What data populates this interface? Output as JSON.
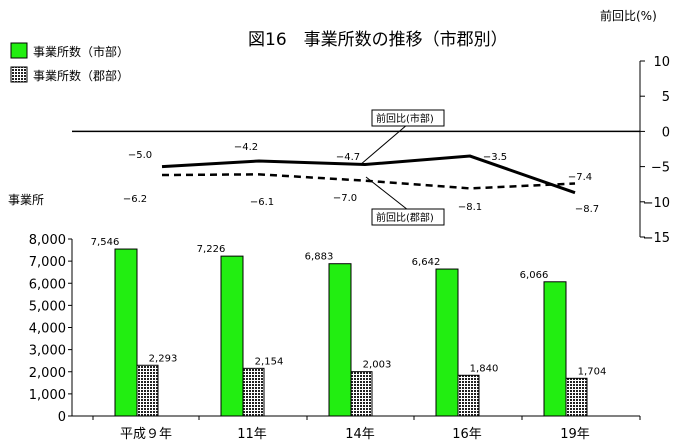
{
  "chart_data": {
    "type": "bar",
    "title": "図16　事業所数の推移（市郡別）",
    "categories": [
      "平成９年",
      "11年",
      "14年",
      "16年",
      "19年"
    ],
    "bar_axis": {
      "label": "事業所",
      "ylim": [
        0,
        8000
      ],
      "ticks": [
        "0",
        "1,000",
        "2,000",
        "3,000",
        "4,000",
        "5,000",
        "6,000",
        "7,000",
        "8,000"
      ]
    },
    "bar_series": [
      {
        "name": "事業所数（市部）",
        "color": "#22ee11",
        "values": [
          7546,
          7226,
          6883,
          6642,
          6066
        ],
        "labels": [
          "7,546",
          "7,226",
          "6,883",
          "6,642",
          "6,066"
        ]
      },
      {
        "name": "事業所数（郡部）",
        "color": "#555555",
        "pattern": "checker",
        "values": [
          2293,
          2154,
          2003,
          1840,
          1704
        ],
        "labels": [
          "2,293",
          "2,154",
          "2,003",
          "1,840",
          "1,704"
        ]
      }
    ],
    "line_axis": {
      "label": "前回比(%)",
      "ylim": [
        -15,
        10
      ],
      "ticks": [
        "10",
        "5",
        "0",
        "−5",
        "−10",
        "−15"
      ]
    },
    "line_series": [
      {
        "name": "前回比(市部)",
        "style": "solid",
        "values": [
          -5.0,
          -4.2,
          -4.7,
          -3.5,
          -8.7
        ],
        "labels": [
          "−5.0",
          "−4.2",
          "−4.7",
          "−3.5",
          "−8.7"
        ]
      },
      {
        "name": "前回比(郡部)",
        "style": "dashed",
        "values": [
          -6.2,
          -6.1,
          -7.0,
          -8.1,
          -7.4
        ],
        "labels": [
          "−6.2",
          "−6.1",
          "−7.0",
          "−8.1",
          "−7.4"
        ]
      }
    ],
    "legend": "top-left",
    "grid": false
  }
}
